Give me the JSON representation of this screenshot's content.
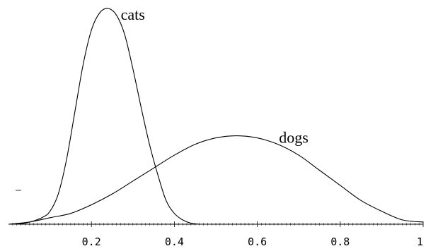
{
  "chart_data": {
    "type": "line",
    "title": "",
    "xlabel": "",
    "ylabel": "",
    "xlim": [
      0,
      1
    ],
    "ylim": [
      0,
      1
    ],
    "grid": false,
    "legend": "none",
    "x_ticks": [
      {
        "value": 0.2,
        "label": "0.2"
      },
      {
        "value": 0.4,
        "label": "0.4"
      },
      {
        "value": 0.6,
        "label": "0.6"
      },
      {
        "value": 0.8,
        "label": "0.8"
      },
      {
        "value": 1.0,
        "label": "1"
      }
    ],
    "series": [
      {
        "name": "cats",
        "color": "#000000",
        "x": [
          0.0,
          0.04,
          0.08,
          0.1,
          0.12,
          0.14,
          0.16,
          0.18,
          0.2,
          0.22,
          0.24,
          0.26,
          0.28,
          0.3,
          0.32,
          0.34,
          0.36,
          0.38,
          0.4,
          0.42,
          0.44,
          0.46
        ],
        "y": [
          0.0,
          0.005,
          0.03,
          0.06,
          0.14,
          0.3,
          0.52,
          0.74,
          0.9,
          0.98,
          1.0,
          0.97,
          0.88,
          0.72,
          0.54,
          0.37,
          0.23,
          0.11,
          0.05,
          0.02,
          0.005,
          0.0
        ]
      },
      {
        "name": "dogs",
        "color": "#000000",
        "x": [
          0.0,
          0.05,
          0.1,
          0.15,
          0.2,
          0.25,
          0.3,
          0.35,
          0.4,
          0.45,
          0.5,
          0.55,
          0.6,
          0.65,
          0.7,
          0.75,
          0.8,
          0.85,
          0.9,
          0.95,
          1.0
        ],
        "y": [
          0.0,
          0.01,
          0.03,
          0.05,
          0.09,
          0.14,
          0.2,
          0.26,
          0.32,
          0.37,
          0.4,
          0.41,
          0.4,
          0.37,
          0.32,
          0.25,
          0.18,
          0.11,
          0.06,
          0.02,
          0.01
        ]
      }
    ]
  }
}
